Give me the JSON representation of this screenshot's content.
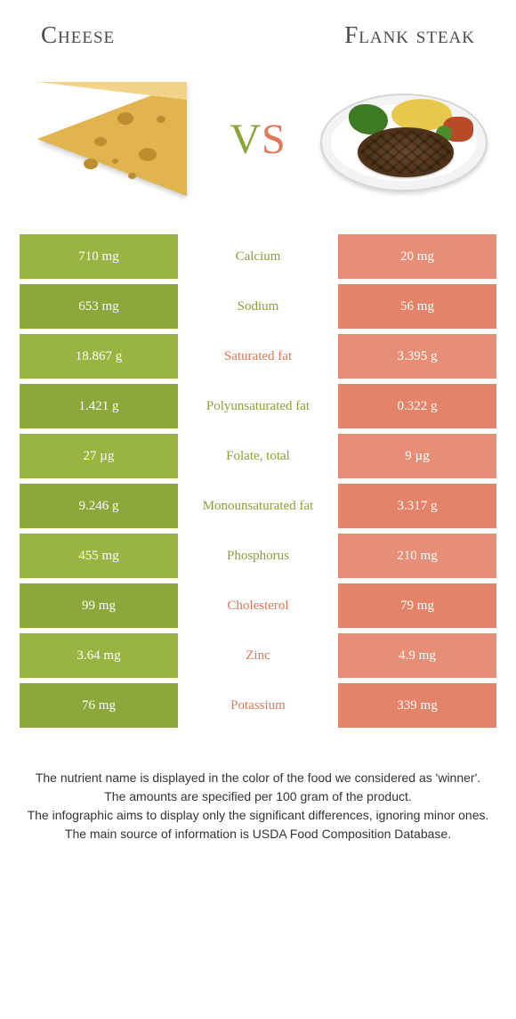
{
  "colors": {
    "left": "#99b441",
    "left_alt": "#8ca73a",
    "right": "#e78f76",
    "right_alt": "#e3846a",
    "left_text": "#8aa236",
    "right_text": "#e0785a"
  },
  "left_title": "Cheese",
  "right_title": "Flank steak",
  "rows": [
    {
      "nutrient": "Calcium",
      "left": "710 mg",
      "right": "20 mg",
      "winner": "left"
    },
    {
      "nutrient": "Sodium",
      "left": "653 mg",
      "right": "56 mg",
      "winner": "left"
    },
    {
      "nutrient": "Saturated fat",
      "left": "18.867 g",
      "right": "3.395 g",
      "winner": "right"
    },
    {
      "nutrient": "Polyunsaturated fat",
      "left": "1.421 g",
      "right": "0.322 g",
      "winner": "left"
    },
    {
      "nutrient": "Folate, total",
      "left": "27 µg",
      "right": "9 µg",
      "winner": "left"
    },
    {
      "nutrient": "Monounsaturated fat",
      "left": "9.246 g",
      "right": "3.317 g",
      "winner": "left"
    },
    {
      "nutrient": "Phosphorus",
      "left": "455 mg",
      "right": "210 mg",
      "winner": "left"
    },
    {
      "nutrient": "Cholesterol",
      "left": "99 mg",
      "right": "79 mg",
      "winner": "right"
    },
    {
      "nutrient": "Zinc",
      "left": "3.64 mg",
      "right": "4.9 mg",
      "winner": "right"
    },
    {
      "nutrient": "Potassium",
      "left": "76 mg",
      "right": "339 mg",
      "winner": "right"
    }
  ],
  "footer": [
    "The nutrient name is displayed in the color of the food we considered as 'winner'.",
    "The amounts are specified per 100 gram of the product.",
    "The infographic aims to display only the significant differences, ignoring minor ones.",
    "The main source of information is USDA Food Composition Database."
  ]
}
